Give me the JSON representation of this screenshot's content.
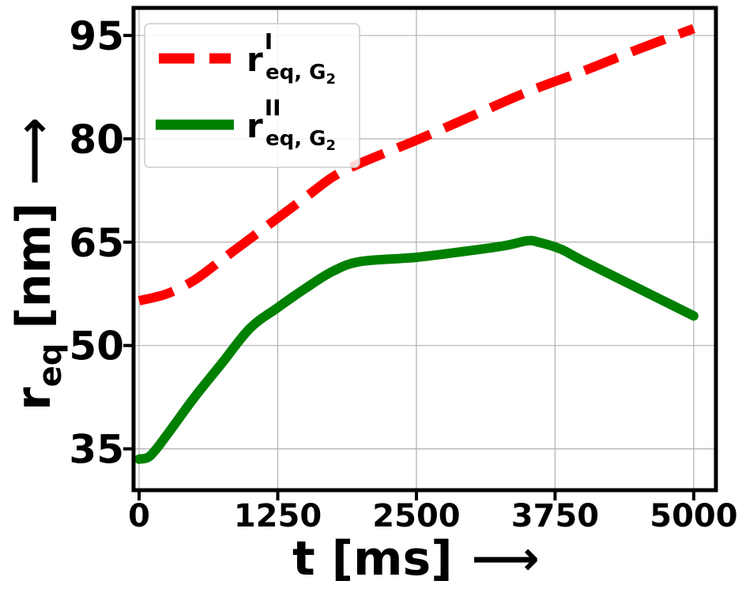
{
  "chart_data": {
    "type": "line",
    "xlabel": "t [ms]",
    "ylabel_base": "r",
    "ylabel_sub": "eq",
    "ylabel_unit": "[nm]",
    "arrow": "⟶",
    "xlim": [
      -50,
      5200
    ],
    "ylim": [
      29,
      99
    ],
    "xticks": [
      0,
      1250,
      2500,
      3750,
      5000
    ],
    "xtick_labels": [
      "0",
      "1250",
      "2500",
      "3750",
      "5000"
    ],
    "yticks": [
      35,
      50,
      65,
      80,
      95
    ],
    "ytick_labels": [
      "35",
      "50",
      "65",
      "80",
      "95"
    ],
    "grid": true,
    "legend_position": "top-left",
    "series": [
      {
        "legend_base": "r",
        "legend_sup": "I",
        "legend_sub": "eq, G",
        "legend_subsub": "2",
        "color": "#ff0000",
        "style": "dashed",
        "x": [
          0,
          250,
          500,
          750,
          1000,
          1250,
          1500,
          1750,
          2000,
          2500,
          3000,
          3500,
          4000,
          4500,
          5000
        ],
        "y": [
          56.5,
          57.5,
          59.5,
          62.5,
          65.5,
          68.5,
          71.5,
          74.5,
          76.5,
          79.8,
          83.3,
          86.8,
          89.8,
          93.0,
          96.0
        ]
      },
      {
        "legend_base": "r",
        "legend_sup": "II",
        "legend_sub": "eq, G",
        "legend_subsub": "2",
        "color": "#008000",
        "style": "solid",
        "x": [
          0,
          100,
          250,
          500,
          750,
          1000,
          1250,
          1500,
          1750,
          2000,
          2500,
          3000,
          3300,
          3500,
          3600,
          3800,
          4000,
          4500,
          5000
        ],
        "y": [
          33.5,
          34.0,
          37.0,
          42.5,
          47.5,
          52.5,
          55.5,
          58.3,
          60.8,
          62.2,
          62.8,
          63.8,
          64.5,
          65.2,
          65.0,
          64.0,
          62.3,
          58.3,
          54.3
        ]
      }
    ]
  }
}
